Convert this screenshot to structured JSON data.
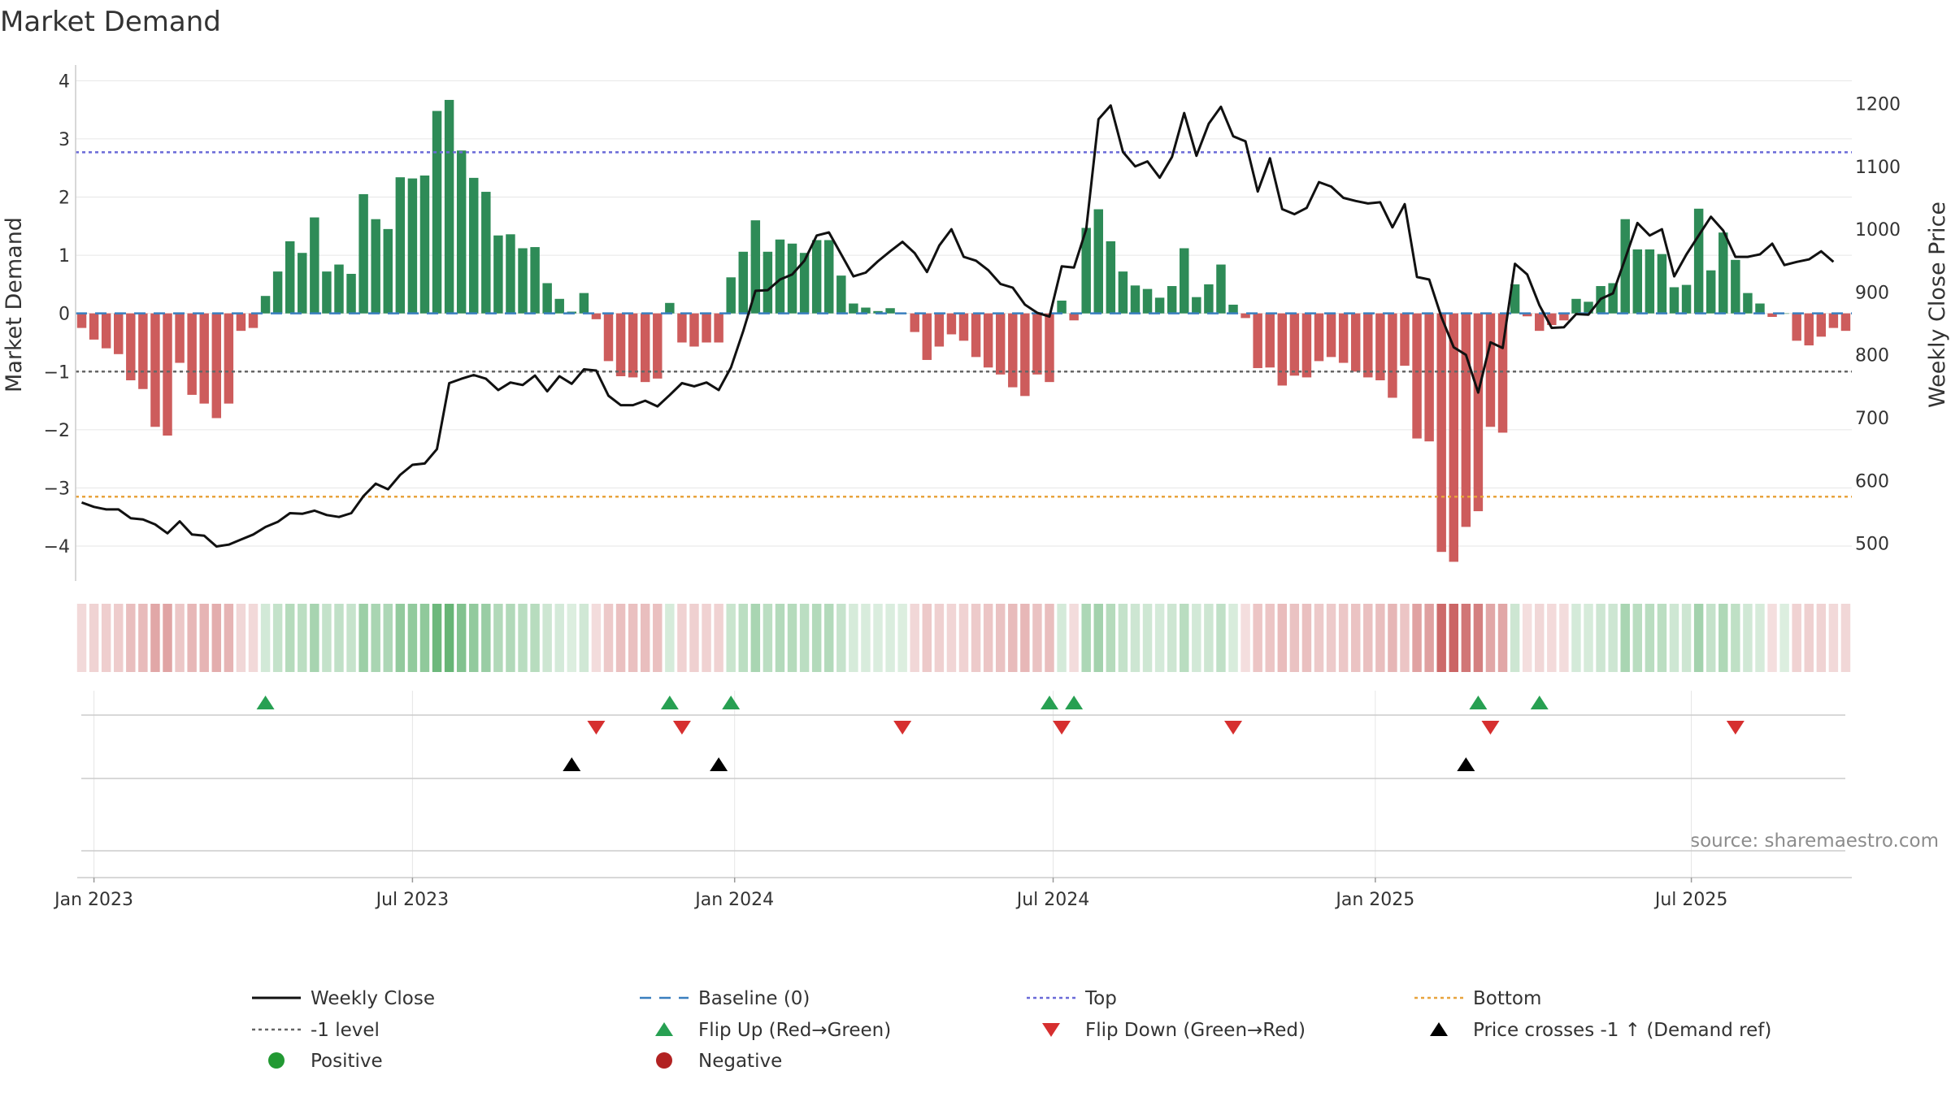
{
  "title": "Market Demand",
  "source": "source: sharemaestro.com",
  "colors": {
    "positive": "#2e8b57",
    "negative": "#cd5c5c",
    "price": "#111111",
    "top": "#6a6ad8",
    "bottom": "#e8a33d",
    "baseline": "#3a7fbf",
    "minus_one": "#666666",
    "flip_up": "#27a052",
    "flip_down": "#d62f2f",
    "cross": "#000000",
    "grid": "#e6e6e6"
  },
  "chart_data": {
    "type": "bar",
    "title": "Market Demand",
    "ylabel": "Market Demand",
    "y2label": "Weekly Close Price",
    "ylim": [
      -4.6,
      4.2
    ],
    "y2lim": [
      440,
      1255
    ],
    "yticks": [
      "4",
      "3",
      "2",
      "1",
      "0",
      "−1",
      "−2",
      "−3",
      "−4"
    ],
    "ytick_values": [
      4,
      3,
      2,
      1,
      0,
      -1,
      -2,
      -3,
      -4
    ],
    "y2ticks": [
      "1200",
      "1100",
      "1000",
      "900",
      "800",
      "700",
      "600",
      "500"
    ],
    "y2tick_values": [
      1200,
      1100,
      1000,
      900,
      800,
      700,
      600,
      500
    ],
    "x_ticks": [
      {
        "label": "Jan 2023",
        "week": 0
      },
      {
        "label": "Jul 2023",
        "week": 26
      },
      {
        "label": "Jan 2024",
        "week": 52.3
      },
      {
        "label": "Jul 2024",
        "week": 78.3
      },
      {
        "label": "Jan 2025",
        "week": 104.6
      },
      {
        "label": "Jul 2025",
        "week": 130.4
      }
    ],
    "week_start": -1,
    "series": [
      {
        "name": "Market Demand",
        "values": [
          -0.25,
          -0.45,
          -0.6,
          -0.7,
          -1.15,
          -1.3,
          -1.95,
          -2.1,
          -0.85,
          -1.4,
          -1.55,
          -1.8,
          -1.55,
          -0.3,
          -0.25,
          0.3,
          0.72,
          1.24,
          1.04,
          1.65,
          0.72,
          0.84,
          0.68,
          2.05,
          1.62,
          1.45,
          2.34,
          2.32,
          2.37,
          3.48,
          3.67,
          2.8,
          2.33,
          2.09,
          1.34,
          1.36,
          1.12,
          1.14,
          0.52,
          0.25,
          0.03,
          0.35,
          -0.1,
          -0.82,
          -1.08,
          -1.1,
          -1.18,
          -1.12,
          0.18,
          -0.5,
          -0.57,
          -0.5,
          -0.5,
          0.62,
          1.06,
          1.6,
          1.06,
          1.27,
          1.2,
          1.04,
          1.26,
          1.26,
          0.65,
          0.17,
          0.1,
          0.04,
          0.09,
          0.0,
          -0.32,
          -0.8,
          -0.57,
          -0.36,
          -0.47,
          -0.75,
          -0.93,
          -1.05,
          -1.27,
          -1.42,
          -1.05,
          -1.18,
          0.22,
          -0.12,
          1.47,
          1.79,
          1.24,
          0.72,
          0.48,
          0.42,
          0.27,
          0.47,
          1.12,
          0.28,
          0.5,
          0.84,
          0.15,
          -0.08,
          -0.94,
          -0.93,
          -1.24,
          -1.07,
          -1.1,
          -0.82,
          -0.75,
          -0.85,
          -1.0,
          -1.1,
          -1.15,
          -1.45,
          -0.9,
          -2.15,
          -2.2,
          -4.1,
          -4.27,
          -3.67,
          -3.4,
          -1.95,
          -2.05,
          0.5,
          -0.05,
          -0.3,
          -0.2,
          -0.12,
          0.25,
          0.2,
          0.47,
          0.52,
          1.62,
          1.1,
          1.1,
          1.02,
          0.45,
          0.49,
          1.8,
          0.74,
          1.39,
          0.92,
          0.35,
          0.17,
          -0.06,
          0.0,
          -0.47,
          -0.55,
          -0.4,
          -0.25,
          -0.3
        ]
      },
      {
        "name": "Weekly Close",
        "values": [
          565,
          558,
          554,
          554,
          540,
          538,
          530,
          516,
          535,
          514,
          512,
          495,
          498,
          506,
          514,
          526,
          534,
          548,
          547,
          552,
          545,
          542,
          548,
          575,
          595,
          586,
          609,
          625,
          627,
          650,
          755,
          762,
          768,
          762,
          744,
          756,
          752,
          767,
          742,
          766,
          754,
          777,
          775,
          735,
          720,
          720,
          727,
          718,
          736,
          755,
          750,
          756,
          744,
          780,
          838,
          902,
          903,
          920,
          928,
          950,
          990,
          995,
          960,
          925,
          931,
          949,
          965,
          980,
          962,
          932,
          974,
          1000,
          956,
          950,
          935,
          913,
          907,
          880,
          867,
          861,
          941,
          939,
          1000,
          1175,
          1197,
          1123,
          1100,
          1108,
          1082,
          1115,
          1185,
          1117,
          1168,
          1195,
          1148,
          1140,
          1060,
          1113,
          1032,
          1024,
          1034,
          1075,
          1068,
          1050,
          1045,
          1041,
          1043,
          1003,
          1040,
          924,
          920,
          860,
          812,
          800,
          740,
          820,
          811,
          945,
          928,
          879,
          843,
          844,
          865,
          864,
          889,
          898,
          953,
          1010,
          990,
          1000,
          925,
          960,
          990,
          1020,
          998,
          956,
          956,
          960,
          977,
          943,
          948,
          952,
          965,
          948
        ]
      }
    ],
    "reference_lines": [
      {
        "name": "Baseline (0)",
        "value": 0
      },
      {
        "name": "Top",
        "value": 2.77
      },
      {
        "name": "Bottom",
        "value": -3.15
      },
      {
        "name": "-1 level",
        "value": -1
      }
    ],
    "flip_up_weeks": [
      14,
      47,
      52,
      78,
      80,
      113,
      118
    ],
    "flip_down_weeks": [
      41,
      48,
      66,
      79,
      93,
      114,
      134
    ],
    "price_cross_weeks": [
      39,
      51,
      112
    ],
    "legend": [
      {
        "label": "Weekly Close",
        "kind": "line"
      },
      {
        "label": "Baseline (0)",
        "kind": "dash"
      },
      {
        "label": "Top",
        "kind": "dot-top"
      },
      {
        "label": "Bottom",
        "kind": "dot-bottom"
      },
      {
        "label": "-1 level",
        "kind": "dot-minus"
      },
      {
        "label": "Flip Up (Red→Green)",
        "kind": "tri-up"
      },
      {
        "label": "Flip Down (Green→Red)",
        "kind": "tri-down"
      },
      {
        "label": "Price crosses -1 ↑ (Demand ref)",
        "kind": "tri-cross"
      },
      {
        "label": "Positive",
        "kind": "dot-pos"
      },
      {
        "label": "Negative",
        "kind": "dot-neg"
      }
    ]
  }
}
